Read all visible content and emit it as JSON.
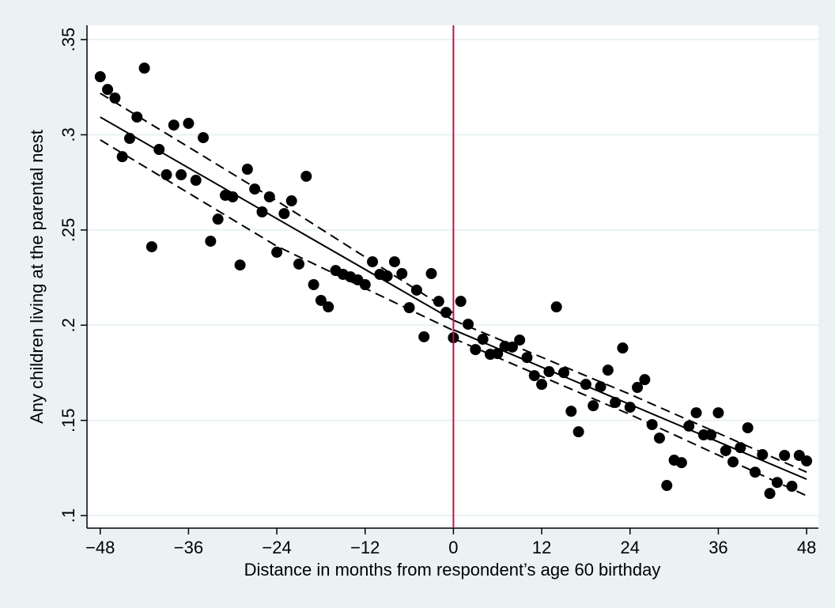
{
  "chart_data": {
    "type": "scatter",
    "xlabel": "Distance in months from respondent’s age 60 birthday",
    "ylabel": "Any children living at the parental nest",
    "color": "#000000",
    "x": [
      -48,
      -47,
      -46,
      -45,
      -44,
      -43,
      -42,
      -41,
      -40,
      -39,
      -38,
      -37,
      -36,
      -35,
      -34,
      -33,
      -32,
      -31,
      -30,
      -29,
      -28,
      -27,
      -26,
      -25,
      -24,
      -23,
      -22,
      -21,
      -20,
      -19,
      -18,
      -17,
      -16,
      -15,
      -14,
      -13,
      -12,
      -11,
      -10,
      -9,
      -8,
      -7,
      -6,
      -5,
      -4,
      -3,
      -2,
      -1,
      0,
      1,
      2,
      3,
      4,
      5,
      6,
      7,
      8,
      9,
      10,
      11,
      12,
      13,
      14,
      15,
      16,
      17,
      18,
      19,
      20,
      21,
      22,
      23,
      24,
      25,
      26,
      27,
      28,
      29,
      30,
      31,
      32,
      33,
      34,
      35,
      36,
      37,
      38,
      39,
      40,
      41,
      42,
      43,
      44,
      45,
      46,
      47,
      48
    ],
    "values": [
      0.3305,
      0.3238,
      0.3193,
      0.2885,
      0.2981,
      0.3093,
      0.335,
      0.2412,
      0.2923,
      0.279,
      0.3051,
      0.279,
      0.306,
      0.2761,
      0.2985,
      0.2441,
      0.2557,
      0.2682,
      0.2674,
      0.2316,
      0.2819,
      0.2715,
      0.2595,
      0.2674,
      0.2383,
      0.2586,
      0.2653,
      0.2321,
      0.2782,
      0.2213,
      0.213,
      0.2096,
      0.2287,
      0.2267,
      0.2254,
      0.2238,
      0.2213,
      0.2333,
      0.2267,
      0.2258,
      0.2333,
      0.2271,
      0.2092,
      0.2184,
      0.1939,
      0.2271,
      0.2125,
      0.2067,
      0.1934,
      0.2125,
      0.2005,
      0.1872,
      0.1926,
      0.1847,
      0.1851,
      0.1889,
      0.1885,
      0.1922,
      0.183,
      0.1735,
      0.1689,
      0.1756,
      0.2096,
      0.1751,
      0.1548,
      0.144,
      0.1689,
      0.1577,
      0.1677,
      0.1764,
      0.1594,
      0.188,
      0.1569,
      0.1673,
      0.1714,
      0.1478,
      0.1407,
      0.1158,
      0.1291,
      0.1278,
      0.147,
      0.154,
      0.1424,
      0.1424,
      0.154,
      0.1341,
      0.1282,
      0.1357,
      0.1461,
      0.1228,
      0.132,
      0.1116,
      0.1174,
      0.1316,
      0.1154,
      0.1316,
      0.1287
    ],
    "lines": [
      {
        "x": [
          -48,
          0
        ],
        "values": [
          0.3093,
          0.2026
        ],
        "dashed": false
      },
      {
        "x": [
          -48,
          -24,
          0
        ],
        "values": [
          0.3218,
          0.2653,
          0.2063
        ],
        "dashed": true
      },
      {
        "x": [
          -48,
          -24,
          0
        ],
        "values": [
          0.2973,
          0.2415,
          0.1972
        ],
        "dashed": true
      },
      {
        "x": [
          0,
          48
        ],
        "values": [
          0.1976,
          0.1191
        ],
        "dashed": false
      },
      {
        "x": [
          0,
          24,
          48
        ],
        "values": [
          0.2026,
          0.1637,
          0.1228
        ],
        "dashed": true
      },
      {
        "x": [
          0,
          24,
          48
        ],
        "values": [
          0.193,
          0.1531,
          0.1104
        ],
        "dashed": true
      }
    ],
    "line_color": "#000000",
    "vline": 0,
    "vline_color": "#c0143c",
    "xlim": [
      -49.8,
      49.6
    ],
    "xticks": [
      {
        "value": -48,
        "label": "−48"
      },
      {
        "value": -36,
        "label": "−36"
      },
      {
        "value": -24,
        "label": "−24"
      },
      {
        "value": -12,
        "label": "−12"
      },
      0,
      12,
      24,
      36,
      48
    ],
    "ylim": [
      0.0934,
      0.3575
    ],
    "yticks": [
      {
        "value": 0.1,
        "label": ".1"
      },
      {
        "value": 0.15,
        "label": ".15"
      },
      {
        "value": 0.2,
        "label": ".2"
      },
      {
        "value": 0.25,
        "label": ".25"
      },
      {
        "value": 0.3,
        "label": ".3"
      },
      {
        "value": 0.35,
        "label": ".35"
      }
    ],
    "grid": true
  }
}
